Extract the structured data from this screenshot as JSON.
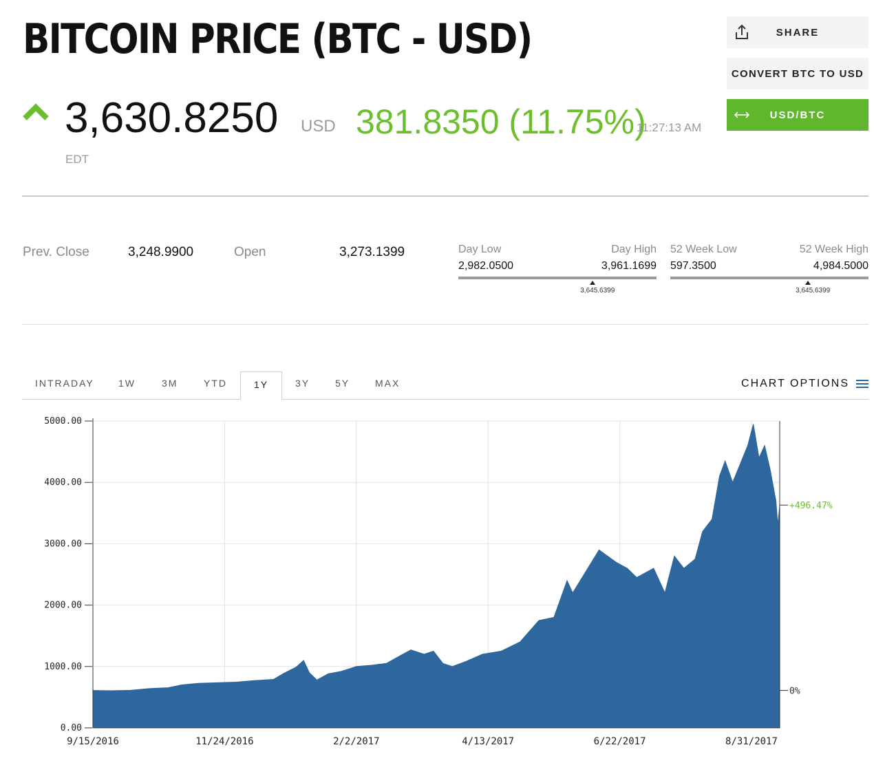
{
  "header": {
    "title": "BITCOIN PRICE (BTC - USD)",
    "price": "3,630.8250",
    "currency": "USD",
    "change": "381.8350 (11.75%)",
    "time": "11:27:13 AM",
    "timezone": "EDT",
    "direction": "up",
    "up_color": "#6cbf2c"
  },
  "actions": {
    "share": "SHARE",
    "convert": "CONVERT BTC TO USD",
    "usd_btc": "USD/BTC",
    "share_icon": "share-icon",
    "swap_icon": "swap-arrows-icon"
  },
  "stats": {
    "prev_close_label": "Prev. Close",
    "prev_close": "3,248.9900",
    "open_label": "Open",
    "open": "3,273.1399"
  },
  "day_range": {
    "low_label": "Day Low",
    "high_label": "Day High",
    "low": "2,982.0500",
    "high": "3,961.1699",
    "current": "3,645.6399",
    "fraction": 0.678
  },
  "week52_range": {
    "low_label": "52 Week Low",
    "high_label": "52 Week High",
    "low": "597.3500",
    "high": "4,984.5000",
    "current": "3,645.6399",
    "fraction": 0.695
  },
  "tabs": {
    "items": [
      "INTRADAY",
      "1W",
      "3M",
      "YTD",
      "1Y",
      "3Y",
      "5Y",
      "MAX"
    ],
    "active": "1Y",
    "options_label": "CHART OPTIONS"
  },
  "chart_data": {
    "type": "area",
    "color": "#2e679d",
    "ylim": [
      0,
      5000
    ],
    "y_ticks": [
      "0.00",
      "1000.00",
      "2000.00",
      "3000.00",
      "4000.00",
      "5000.00"
    ],
    "x_ticks": [
      "9/15/2016",
      "11/24/2016",
      "2/2/2017",
      "4/13/2017",
      "6/22/2017",
      "8/31/2017"
    ],
    "x_start": "2016-09-15",
    "x_end": "2017-09-15",
    "right_labels": {
      "top": "+496.47%",
      "top_value": 3630,
      "top_color": "#6cbf2c",
      "bottom": "0%",
      "bottom_value": 610,
      "bottom_color": "#333333"
    },
    "points": [
      [
        "2016-09-15",
        610
      ],
      [
        "2016-09-25",
        605
      ],
      [
        "2016-10-05",
        612
      ],
      [
        "2016-10-15",
        640
      ],
      [
        "2016-10-25",
        655
      ],
      [
        "2016-11-01",
        700
      ],
      [
        "2016-11-10",
        725
      ],
      [
        "2016-11-20",
        735
      ],
      [
        "2016-11-30",
        745
      ],
      [
        "2016-12-10",
        770
      ],
      [
        "2016-12-20",
        790
      ],
      [
        "2016-12-25",
        880
      ],
      [
        "2017-01-01",
        990
      ],
      [
        "2017-01-05",
        1100
      ],
      [
        "2017-01-08",
        900
      ],
      [
        "2017-01-12",
        780
      ],
      [
        "2017-01-18",
        880
      ],
      [
        "2017-01-25",
        920
      ],
      [
        "2017-02-02",
        1000
      ],
      [
        "2017-02-10",
        1020
      ],
      [
        "2017-02-18",
        1050
      ],
      [
        "2017-02-25",
        1170
      ],
      [
        "2017-03-03",
        1270
      ],
      [
        "2017-03-10",
        1200
      ],
      [
        "2017-03-15",
        1250
      ],
      [
        "2017-03-20",
        1050
      ],
      [
        "2017-03-25",
        1000
      ],
      [
        "2017-04-01",
        1080
      ],
      [
        "2017-04-10",
        1200
      ],
      [
        "2017-04-20",
        1250
      ],
      [
        "2017-04-30",
        1400
      ],
      [
        "2017-05-10",
        1750
      ],
      [
        "2017-05-18",
        1800
      ],
      [
        "2017-05-25",
        2400
      ],
      [
        "2017-05-28",
        2200
      ],
      [
        "2017-06-05",
        2600
      ],
      [
        "2017-06-11",
        2900
      ],
      [
        "2017-06-20",
        2700
      ],
      [
        "2017-06-26",
        2600
      ],
      [
        "2017-07-01",
        2450
      ],
      [
        "2017-07-10",
        2600
      ],
      [
        "2017-07-16",
        2200
      ],
      [
        "2017-07-21",
        2800
      ],
      [
        "2017-07-26",
        2600
      ],
      [
        "2017-08-01",
        2750
      ],
      [
        "2017-08-05",
        3200
      ],
      [
        "2017-08-10",
        3400
      ],
      [
        "2017-08-14",
        4100
      ],
      [
        "2017-08-17",
        4350
      ],
      [
        "2017-08-21",
        4000
      ],
      [
        "2017-08-25",
        4300
      ],
      [
        "2017-08-29",
        4600
      ],
      [
        "2017-09-01",
        4950
      ],
      [
        "2017-09-04",
        4400
      ],
      [
        "2017-09-07",
        4600
      ],
      [
        "2017-09-10",
        4200
      ],
      [
        "2017-09-13",
        3700
      ],
      [
        "2017-09-14",
        3300
      ],
      [
        "2017-09-15",
        3630
      ]
    ]
  }
}
